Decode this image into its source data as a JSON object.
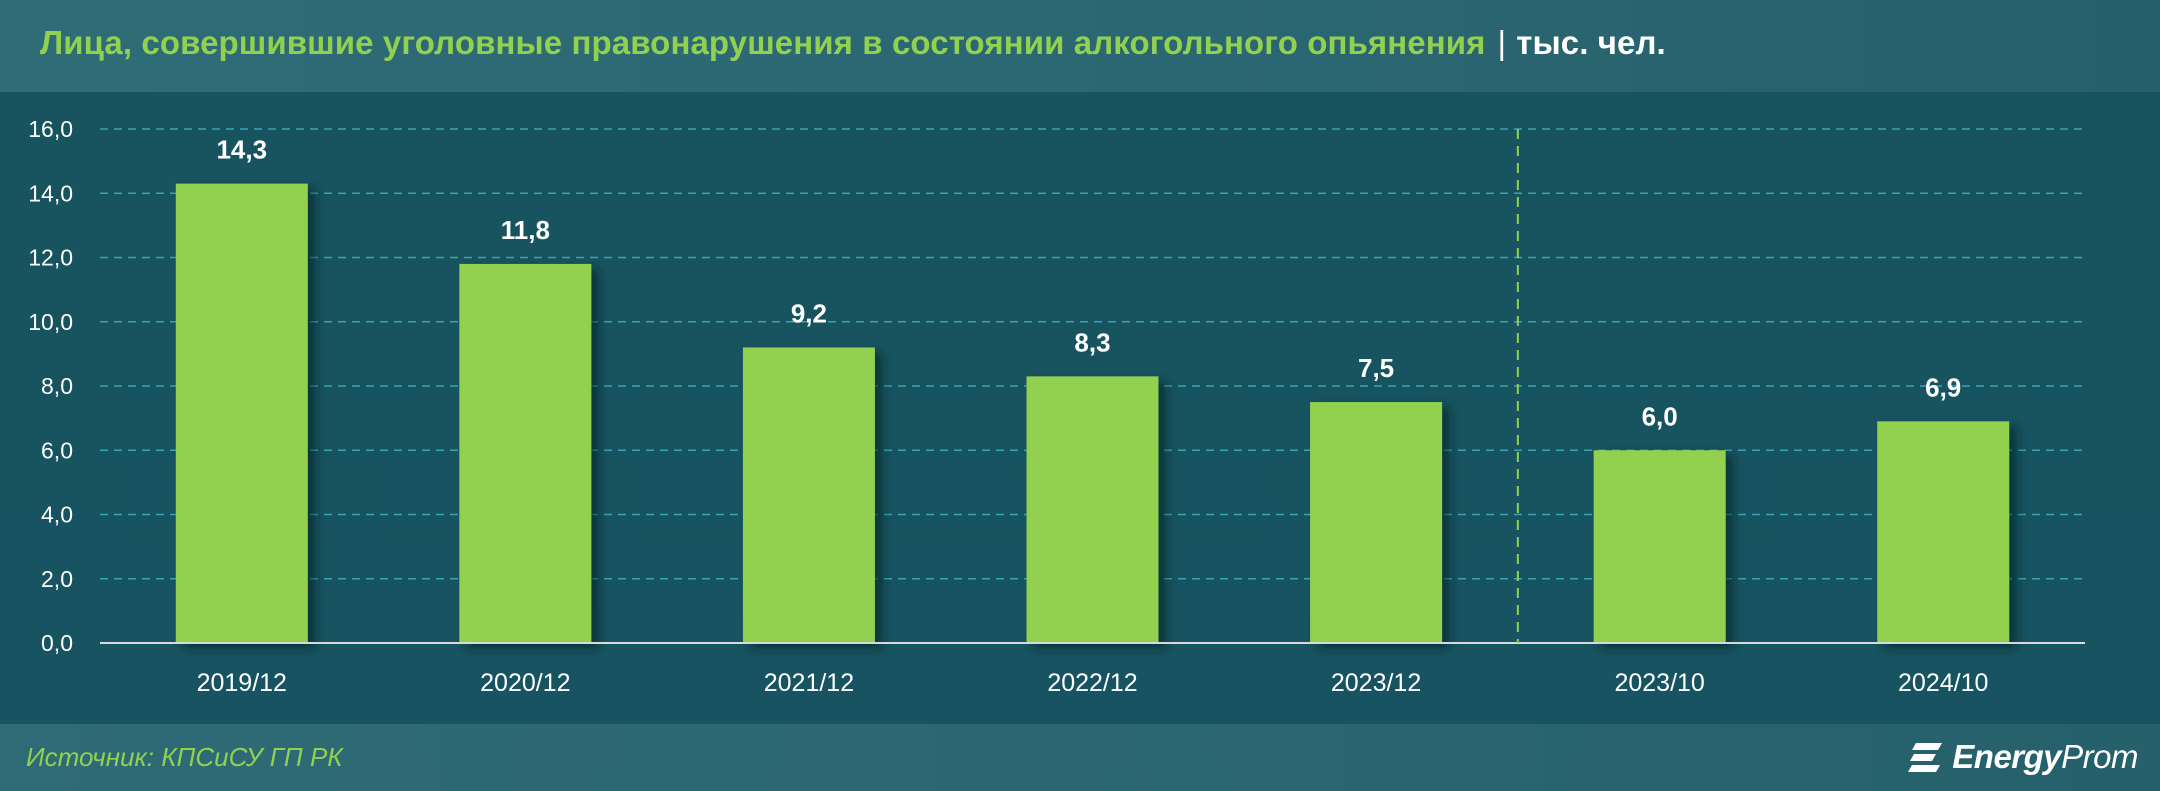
{
  "header": {
    "title": "Лица, совершившие уголовные правонарушения в состоянии алкогольного опьянения",
    "separator": "|",
    "unit": "тыс. чел."
  },
  "footer": {
    "source": "Источник: КПСиСУ ГП РК",
    "logo_bold": "Energy",
    "logo_regular": "Prom",
    "logo_icon": "energyprom-logo-icon"
  },
  "colors": {
    "bar": "#92d050",
    "title_accent": "#92d050",
    "background": "#17545f",
    "grid": "#3aa3b4",
    "divider": "#92d050",
    "text": "#ffffff"
  },
  "chart_data": {
    "type": "bar",
    "title": "Лица, совершившие уголовные правонарушения в состоянии алкогольного опьянения",
    "unit": "тыс. чел.",
    "categories": [
      "2019/12",
      "2020/12",
      "2021/12",
      "2022/12",
      "2023/12",
      "2023/10",
      "2024/10"
    ],
    "values": [
      14.3,
      11.8,
      9.2,
      8.3,
      7.5,
      6.0,
      6.9
    ],
    "value_labels": [
      "14,3",
      "11,8",
      "9,2",
      "8,3",
      "7,5",
      "6,0",
      "6,9"
    ],
    "yticks": [
      "0,0",
      "2,0",
      "4,0",
      "6,0",
      "8,0",
      "10,0",
      "12,0",
      "14,0",
      "16,0"
    ],
    "ylim": [
      0,
      16
    ],
    "grid": true,
    "grid_style": "dashed",
    "legend": "none",
    "divider_after_category": "2023/12"
  }
}
